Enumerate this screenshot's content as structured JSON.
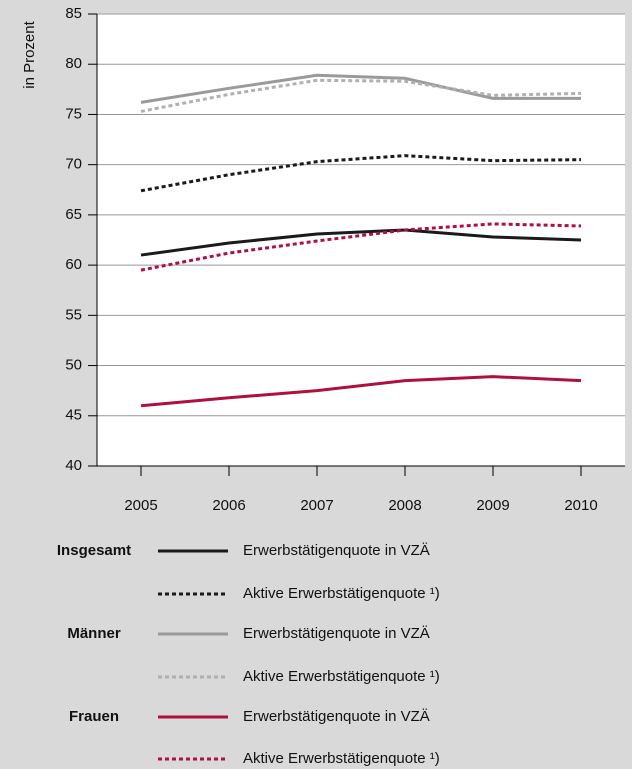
{
  "chart_data": {
    "type": "line",
    "y_label": "in Prozent",
    "categories": [
      "2005",
      "2006",
      "2007",
      "2008",
      "2009",
      "2010"
    ],
    "series": [
      {
        "group": "Insgesamt",
        "name": "Erwerbstätigenquote in VZÄ",
        "color": "#1a1a1a",
        "style": "solid",
        "values": [
          61.0,
          62.2,
          63.1,
          63.5,
          62.8,
          62.5
        ]
      },
      {
        "group": "Insgesamt",
        "name": "Aktive Erwerbstätigenquote ¹)",
        "color": "#1a1a1a",
        "style": "dotted",
        "values": [
          67.4,
          69.0,
          70.3,
          70.9,
          70.4,
          70.5
        ]
      },
      {
        "group": "Männer",
        "name": "Erwerbstätigenquote in VZÄ",
        "color": "#9a9a9a",
        "style": "solid",
        "values": [
          76.2,
          77.6,
          78.9,
          78.6,
          76.6,
          76.6
        ]
      },
      {
        "group": "Männer",
        "name": "Aktive Erwerbstätigenquote ¹)",
        "color": "#b0b0b0",
        "style": "dotted",
        "values": [
          75.3,
          77.0,
          78.4,
          78.3,
          76.9,
          77.1
        ]
      },
      {
        "group": "Frauen",
        "name": "Erwerbstätigenquote in VZÄ",
        "color": "#b0103f",
        "style": "solid",
        "values": [
          46.0,
          46.8,
          47.5,
          48.5,
          48.9,
          48.5
        ]
      },
      {
        "group": "Frauen",
        "name": "Aktive Erwerbstätigenquote ¹)",
        "color": "#b0103f",
        "style": "dotted",
        "values": [
          59.5,
          61.2,
          62.4,
          63.5,
          64.1,
          63.9
        ]
      }
    ],
    "ylim": [
      40,
      85
    ],
    "yticks": [
      40,
      45,
      50,
      55,
      60,
      65,
      70,
      75,
      80,
      85
    ],
    "grid": true
  }
}
